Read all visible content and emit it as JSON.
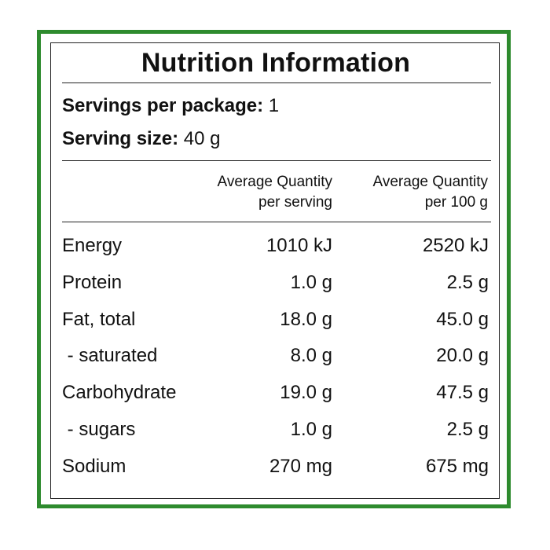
{
  "panel": {
    "title": "Nutrition Information",
    "servings_label": "Servings per package:",
    "servings_value": "1",
    "serving_size_label": "Serving size:",
    "serving_size_value": "40 g",
    "border_color": "#2e8b2e"
  },
  "columns": {
    "per_serving": [
      "Average Quantity",
      "per serving"
    ],
    "per_100g": [
      "Average Quantity",
      "per 100 g"
    ]
  },
  "rows": [
    {
      "name": "Energy",
      "per_serving": "1010 kJ",
      "per_100g": "2520 kJ"
    },
    {
      "name": "Protein",
      "per_serving": "1.0 g",
      "per_100g": "2.5 g"
    },
    {
      "name": "Fat, total",
      "per_serving": "18.0 g",
      "per_100g": "45.0 g"
    },
    {
      "name": " - saturated",
      "per_serving": "8.0 g",
      "per_100g": "20.0 g"
    },
    {
      "name": "Carbohydrate",
      "per_serving": "19.0 g",
      "per_100g": "47.5 g"
    },
    {
      "name": " - sugars",
      "per_serving": "1.0 g",
      "per_100g": "2.5 g"
    },
    {
      "name": "Sodium",
      "per_serving": "270 mg",
      "per_100g": "675 mg"
    }
  ]
}
